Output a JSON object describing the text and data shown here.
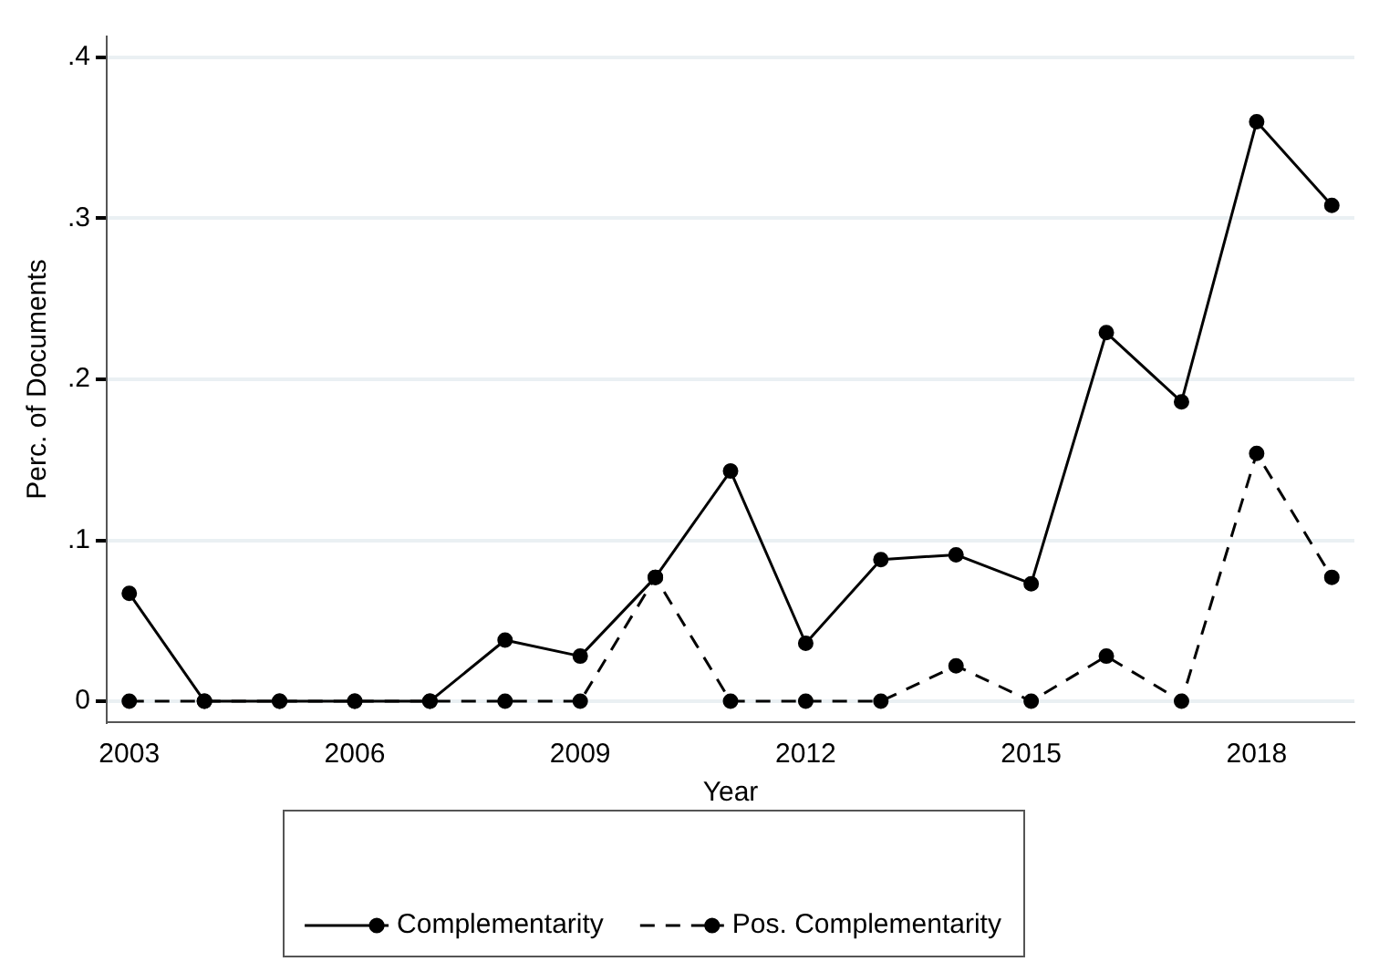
{
  "chart_data": {
    "type": "line",
    "xlabel": "Year",
    "ylabel": "Perc. of Documents",
    "x": [
      2003,
      2004,
      2005,
      2006,
      2007,
      2008,
      2009,
      2010,
      2011,
      2012,
      2013,
      2014,
      2015,
      2016,
      2017,
      2018,
      2019
    ],
    "series": [
      {
        "name": "Complementarity",
        "color": "#000000",
        "line_style": "solid",
        "values": [
          0.067,
          0,
          0,
          0,
          0,
          0.038,
          0.028,
          0.077,
          0.143,
          0.036,
          0.088,
          0.091,
          0.073,
          0.229,
          0.186,
          0.36,
          0.308
        ]
      },
      {
        "name": "Pos. Complementarity",
        "color": "#000000",
        "line_style": "dashed",
        "values": [
          0,
          0,
          0,
          0,
          0,
          0,
          0,
          0.077,
          0,
          0,
          0,
          0.022,
          0,
          0.028,
          0,
          0.154,
          0.077
        ]
      }
    ],
    "xlim": [
      2002.7,
      2019.3
    ],
    "xticks": [
      2003,
      2006,
      2009,
      2012,
      2015,
      2018
    ],
    "ylim": [
      -0.013,
      0.413
    ],
    "yticks": [
      0,
      {
        "value": 0.1,
        "label": ".1"
      },
      {
        "value": 0.2,
        "label": ".2"
      },
      {
        "value": 0.3,
        "label": ".3"
      },
      {
        "value": 0.4,
        "label": ".4"
      }
    ],
    "grid": "y",
    "legend": "bottom",
    "marker": "circle"
  }
}
